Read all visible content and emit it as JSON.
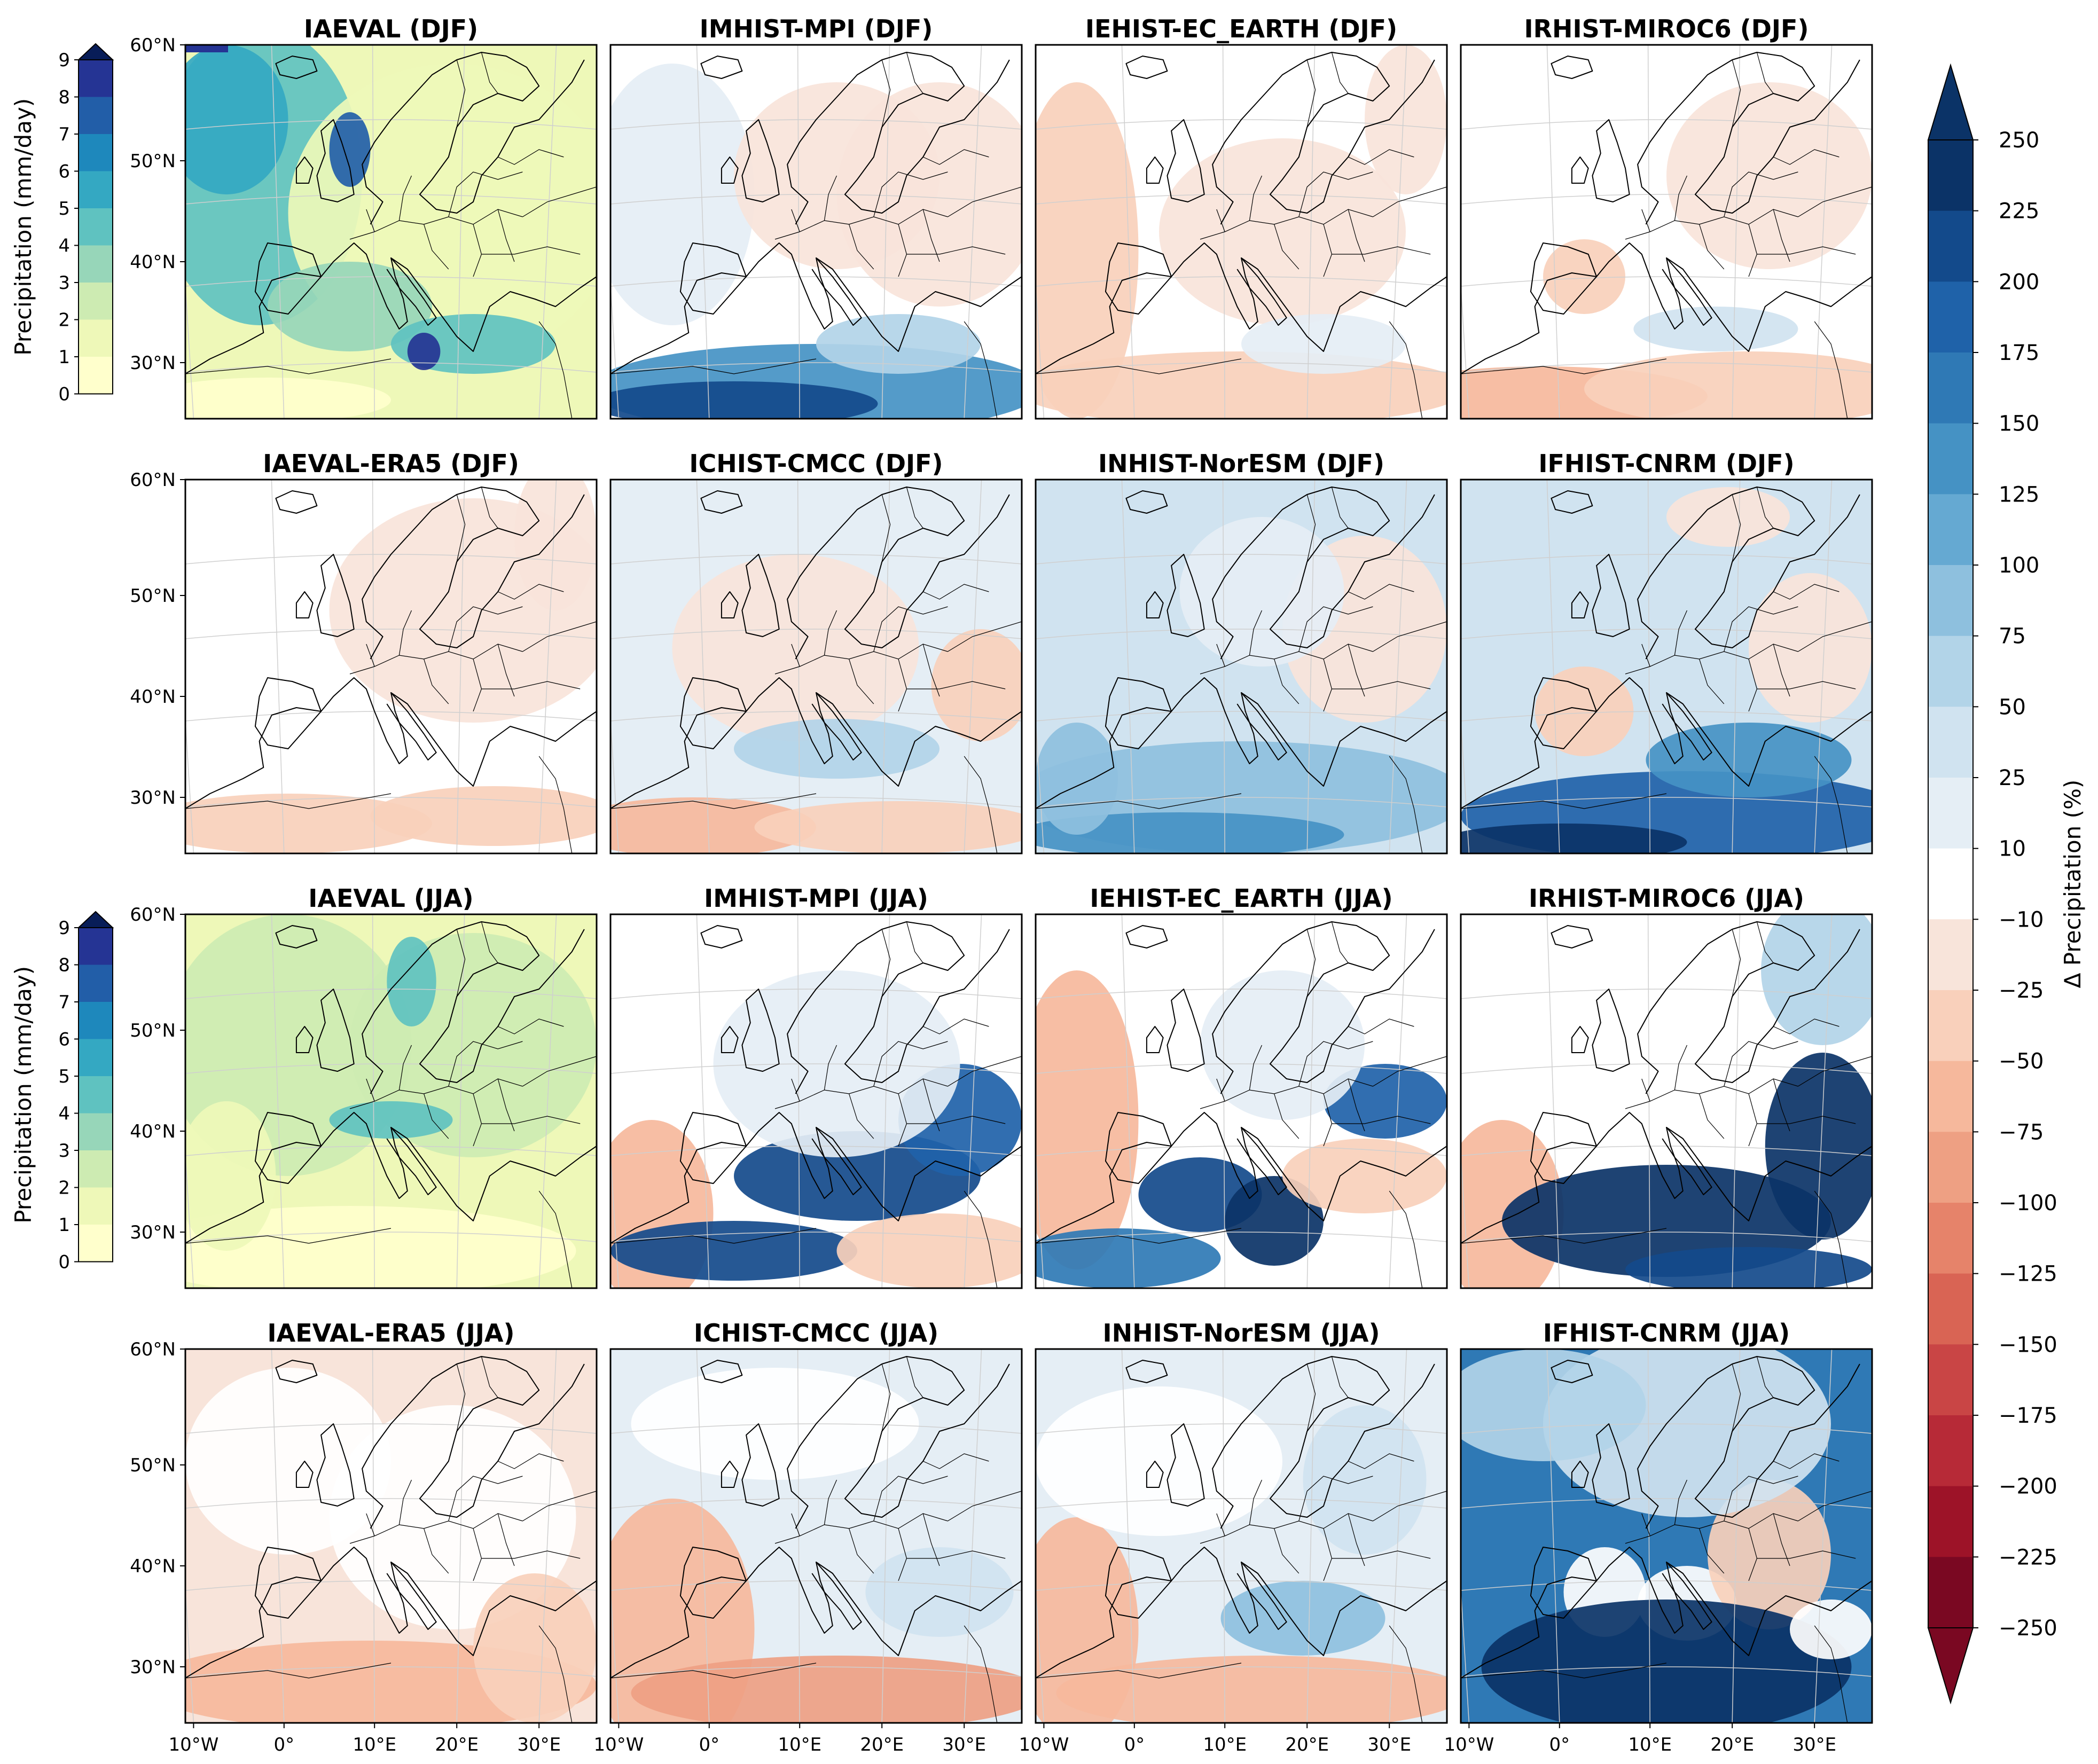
{
  "panels": [
    {
      "title": "IAEVAL (DJF)",
      "kind": "abs",
      "season": "DJF"
    },
    {
      "title": "IMHIST-MPI (DJF)",
      "kind": "delta",
      "season": "DJF",
      "style": "mpi_djf"
    },
    {
      "title": "IEHIST-EC_EARTH (DJF)",
      "kind": "delta",
      "season": "DJF",
      "style": "ece_djf"
    },
    {
      "title": "IRHIST-MIROC6 (DJF)",
      "kind": "delta",
      "season": "DJF",
      "style": "miroc_djf"
    },
    {
      "title": "IAEVAL-ERA5 (DJF)",
      "kind": "delta",
      "season": "DJF",
      "style": "era_djf"
    },
    {
      "title": "ICHIST-CMCC (DJF)",
      "kind": "delta",
      "season": "DJF",
      "style": "cmcc_djf"
    },
    {
      "title": "INHIST-NorESM (DJF)",
      "kind": "delta",
      "season": "DJF",
      "style": "nor_djf"
    },
    {
      "title": "IFHIST-CNRM (DJF)",
      "kind": "delta",
      "season": "DJF",
      "style": "cnrm_djf"
    },
    {
      "title": "IAEVAL (JJA)",
      "kind": "abs",
      "season": "JJA"
    },
    {
      "title": "IMHIST-MPI (JJA)",
      "kind": "delta",
      "season": "JJA",
      "style": "mpi_jja"
    },
    {
      "title": "IEHIST-EC_EARTH (JJA)",
      "kind": "delta",
      "season": "JJA",
      "style": "ece_jja"
    },
    {
      "title": "IRHIST-MIROC6 (JJA)",
      "kind": "delta",
      "season": "JJA",
      "style": "miroc_jja"
    },
    {
      "title": "IAEVAL-ERA5 (JJA)",
      "kind": "delta",
      "season": "JJA",
      "style": "era_jja"
    },
    {
      "title": "ICHIST-CMCC (JJA)",
      "kind": "delta",
      "season": "JJA",
      "style": "cmcc_jja"
    },
    {
      "title": "INHIST-NorESM (JJA)",
      "kind": "delta",
      "season": "JJA",
      "style": "nor_jja"
    },
    {
      "title": "IFHIST-CNRM (JJA)",
      "kind": "delta",
      "season": "JJA",
      "style": "cnrm_jja"
    }
  ],
  "lat_labels": [
    "60°N",
    "50°N",
    "40°N",
    "30°N"
  ],
  "lon_labels": [
    "10°W",
    "0°",
    "10°E",
    "20°E",
    "30°E"
  ],
  "abs_colorbar": {
    "label": "Precipitation (mm/day)",
    "ticks": [
      "0",
      "1",
      "2",
      "3",
      "4",
      "5",
      "6",
      "7",
      "8",
      "9"
    ],
    "colors": [
      "#ffffcc",
      "#eef8b8",
      "#cdebb2",
      "#97d6b9",
      "#5fc2c0",
      "#34a8c2",
      "#1e88bc",
      "#225ea8",
      "#253494",
      "#081d58"
    ],
    "extend": "max"
  },
  "delta_colorbar": {
    "label": "Δ Precipitation (%)",
    "ticks": [
      "250",
      "225",
      "200",
      "175",
      "150",
      "125",
      "100",
      "75",
      "50",
      "25",
      "10",
      "−10",
      "−25",
      "−50",
      "−75",
      "−100",
      "−125",
      "−150",
      "−175",
      "−200",
      "−225",
      "−250"
    ],
    "tick_values": [
      250,
      225,
      200,
      175,
      150,
      125,
      100,
      75,
      50,
      25,
      10,
      -10,
      -25,
      -50,
      -75,
      -100,
      -125,
      -150,
      -175,
      -200,
      -225,
      -250
    ],
    "colors": [
      "#0b3367",
      "#134a8b",
      "#1f62a9",
      "#2f79b5",
      "#4592c4",
      "#65a9d2",
      "#8ec0de",
      "#b2d4e8",
      "#d0e3f0",
      "#e5eef5",
      "#ffffff",
      "#f8e4da",
      "#f9d0bb",
      "#f6b89c",
      "#eea083",
      "#e6836a",
      "#d96454",
      "#c94545",
      "#b72a37",
      "#9d1328",
      "#7a0822"
    ],
    "extend": "both"
  }
}
